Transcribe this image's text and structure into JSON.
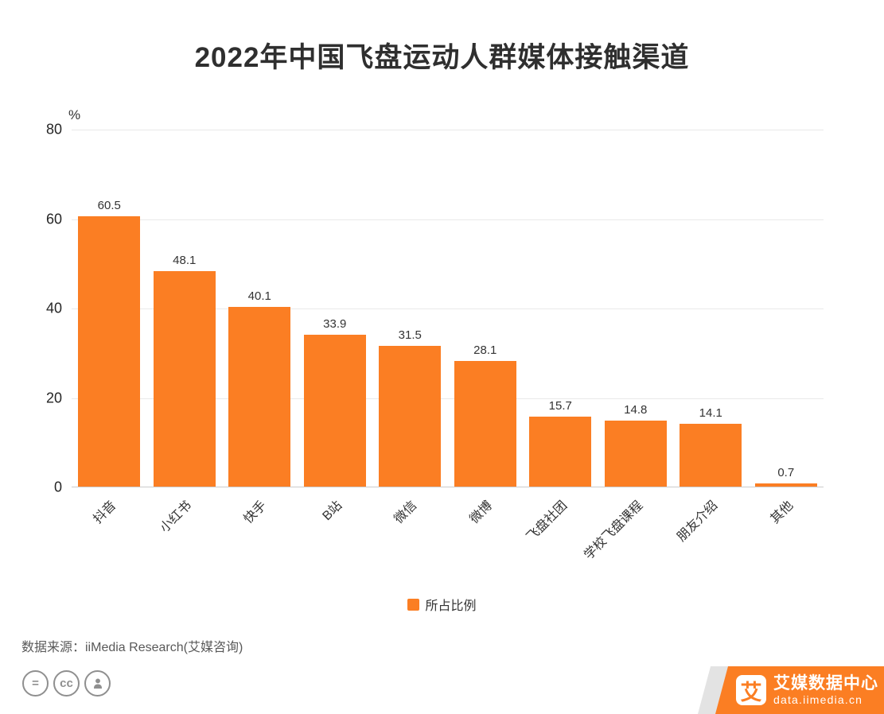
{
  "title": "2022年中国飞盘运动人群媒体接触渠道",
  "chart_data": {
    "type": "bar",
    "title": "2022年中国飞盘运动人群媒体接触渠道",
    "categories": [
      "抖音",
      "小红书",
      "快手",
      "B站",
      "微信",
      "微博",
      "飞盘社团",
      "学校飞盘课程",
      "朋友介绍",
      "其他"
    ],
    "values": [
      60.5,
      48.1,
      40.1,
      33.9,
      31.5,
      28.1,
      15.7,
      14.8,
      14.1,
      0.7
    ],
    "xlabel": "",
    "ylabel": "%",
    "ylim": [
      0,
      80
    ],
    "yticks": [
      0,
      20,
      40,
      60,
      80
    ],
    "grid": true,
    "bar_color": "#fb7e23",
    "legend": [
      {
        "label": "所占比例",
        "color": "#fb7e23"
      }
    ],
    "legend_position": "bottom"
  },
  "footer": {
    "source": "数据来源：iiMedia Research(艾媒咨询)",
    "license_icons": [
      {
        "name": "equals-license-icon",
        "glyph": "="
      },
      {
        "name": "cc-license-icon",
        "glyph": "cc"
      },
      {
        "name": "person-license-icon",
        "glyph": ""
      }
    ]
  },
  "branding": {
    "logo_mark": "艾",
    "logo_text": "艾媒数据中心",
    "logo_url_text": "data.iimedia.cn"
  },
  "colors": {
    "bar": "#fb7e23",
    "brand": "#fb7e23",
    "grid": "#e9e9e9",
    "axis": "#cccccc",
    "text": "#333333",
    "muted": "#8f8f8f"
  }
}
